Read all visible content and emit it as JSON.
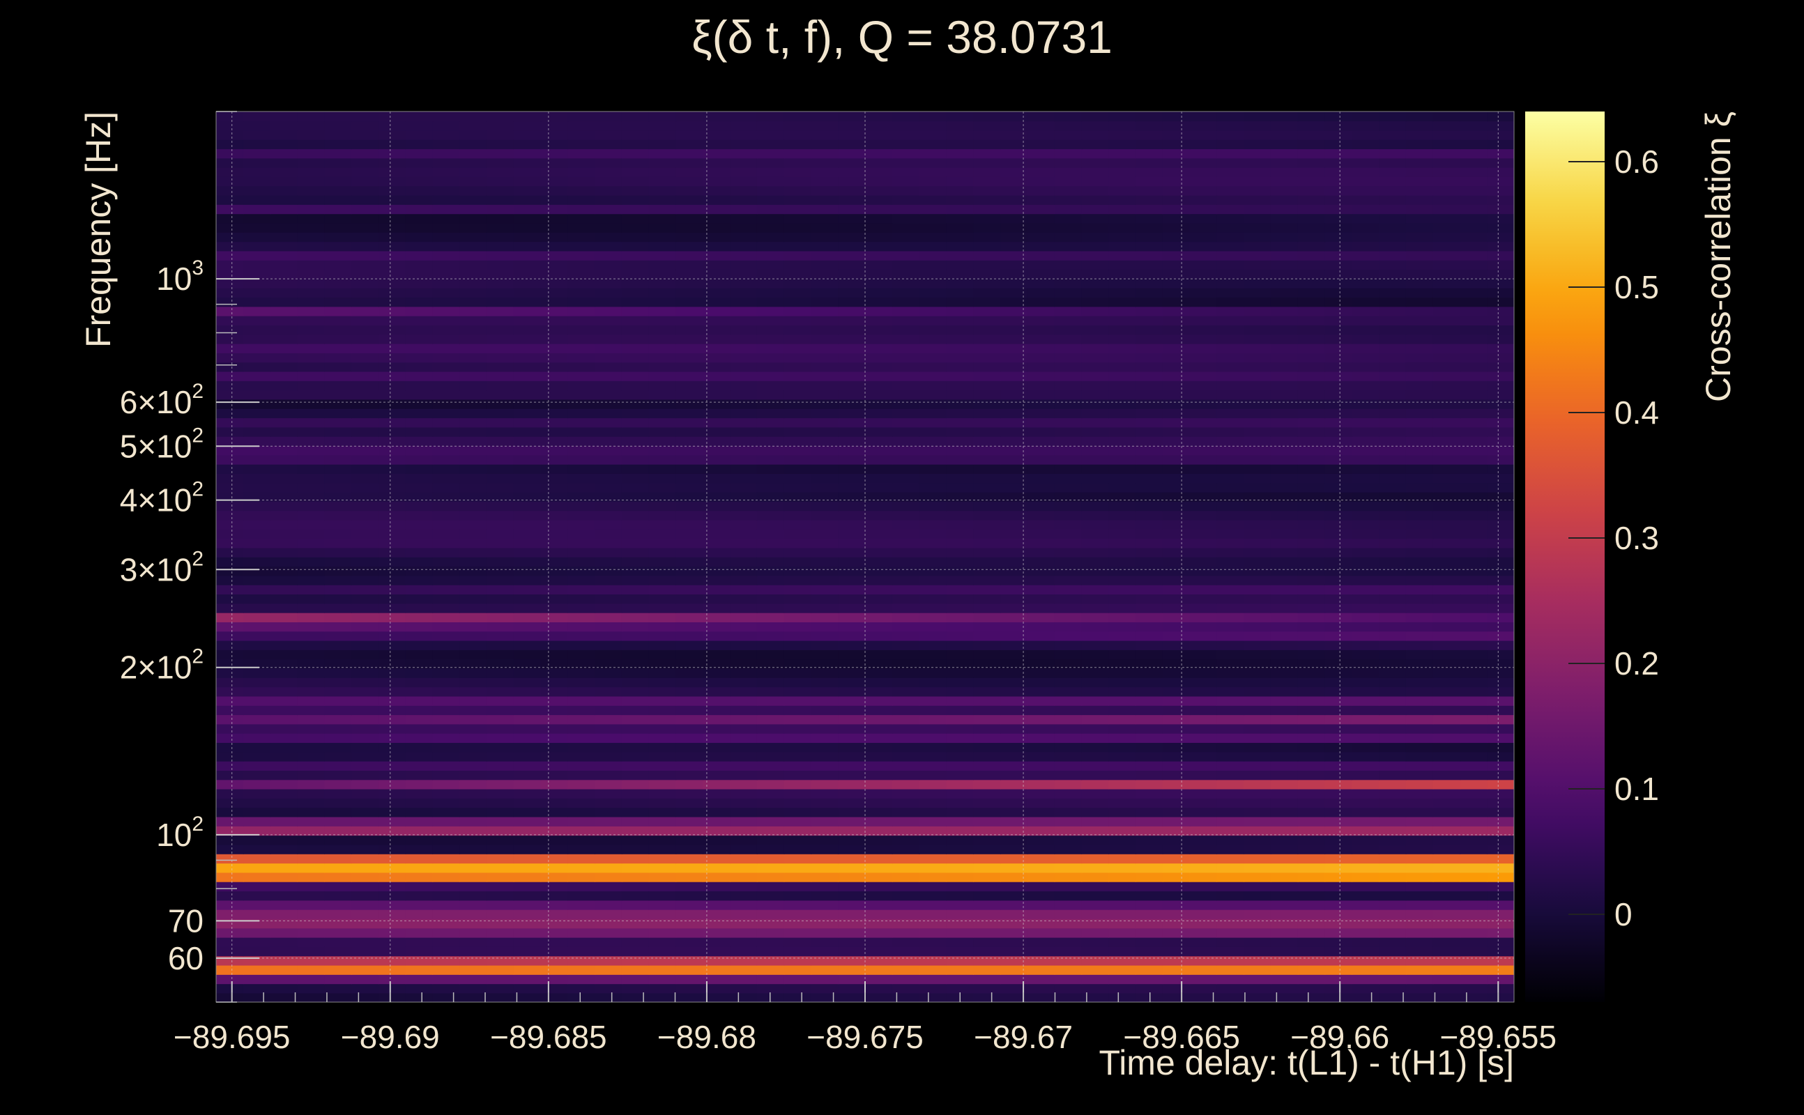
{
  "chart_data": {
    "type": "heatmap",
    "title": "ξ(δ t, f), Q = 38.0731",
    "xlabel": "Time delay: t(L1) - t(H1) [s]",
    "ylabel": "Frequency [Hz]",
    "colorbar_label": "Cross-correlation ξ",
    "x_range": [
      -89.6955,
      -89.6545
    ],
    "y_range": [
      50,
      2000
    ],
    "y_scale": "log",
    "grid": true,
    "colormap": "inferno",
    "colorbar_range": [
      -0.07,
      0.64
    ],
    "colors": {
      "background": "#000000",
      "text": "#f2e6cf",
      "grid": "#d8d8d8",
      "colormap_stops": [
        "#000004",
        "#1b0c41",
        "#4a0c6b",
        "#781c6d",
        "#a52c60",
        "#cf4446",
        "#ed6925",
        "#fb9b06",
        "#f7d13d",
        "#fcffa4"
      ]
    },
    "x_ticks": [
      {
        "value": -89.695,
        "label": "−89.695"
      },
      {
        "value": -89.69,
        "label": "−89.69"
      },
      {
        "value": -89.685,
        "label": "−89.685"
      },
      {
        "value": -89.68,
        "label": "−89.68"
      },
      {
        "value": -89.675,
        "label": "−89.675"
      },
      {
        "value": -89.67,
        "label": "−89.67"
      },
      {
        "value": -89.665,
        "label": "−89.665"
      },
      {
        "value": -89.66,
        "label": "−89.66"
      },
      {
        "value": -89.655,
        "label": "−89.655"
      }
    ],
    "y_ticks": [
      {
        "value": 60,
        "label": "60"
      },
      {
        "value": 70,
        "label": "70"
      },
      {
        "value": 100,
        "label": "10",
        "sup": "2"
      },
      {
        "value": 200,
        "label": "2×10",
        "sup": "2"
      },
      {
        "value": 300,
        "label": "3×10",
        "sup": "2"
      },
      {
        "value": 400,
        "label": "4×10",
        "sup": "2"
      },
      {
        "value": 500,
        "label": "5×10",
        "sup": "2"
      },
      {
        "value": 600,
        "label": "6×10",
        "sup": "2"
      },
      {
        "value": 1000,
        "label": "10",
        "sup": "3"
      }
    ],
    "colorbar_ticks": [
      {
        "value": 0,
        "label": "0"
      },
      {
        "value": 0.1,
        "label": "0.1"
      },
      {
        "value": 0.2,
        "label": "0.2"
      },
      {
        "value": 0.3,
        "label": "0.3"
      },
      {
        "value": 0.4,
        "label": "0.4"
      },
      {
        "value": 0.5,
        "label": "0.5"
      },
      {
        "value": 0.6,
        "label": "0.6"
      }
    ],
    "bands": [
      {
        "f": 56,
        "v0": 0.28,
        "v1": 0.3
      },
      {
        "f": 57.5,
        "v0": 0.45,
        "v1": 0.47
      },
      {
        "f": 59,
        "v0": 0.33,
        "v1": 0.34
      },
      {
        "f": 66,
        "v0": 0.18,
        "v1": 0.22
      },
      {
        "f": 68.5,
        "v0": 0.29,
        "v1": 0.31
      },
      {
        "f": 71,
        "v0": 0.25,
        "v1": 0.27
      },
      {
        "f": 73.5,
        "v0": 0.31,
        "v1": 0.33
      },
      {
        "f": 83,
        "v0": 0.32,
        "v1": 0.34
      },
      {
        "f": 85,
        "v0": 0.55,
        "v1": 0.64
      },
      {
        "f": 88,
        "v0": 0.6,
        "v1": 0.62
      },
      {
        "f": 91,
        "v0": 0.38,
        "v1": 0.4
      },
      {
        "f": 101,
        "v0": 0.21,
        "v1": 0.23
      },
      {
        "f": 104,
        "v0": 0.37,
        "v1": 0.38
      },
      {
        "f": 123,
        "v0": 0.13,
        "v1": 0.33
      },
      {
        "f": 132,
        "v0": 0.08,
        "v1": 0.09
      },
      {
        "f": 152,
        "v0": 0.17,
        "v1": 0.26
      },
      {
        "f": 162,
        "v0": 0.12,
        "v1": 0.18
      },
      {
        "f": 172,
        "v0": 0.14,
        "v1": 0.19
      },
      {
        "f": 225,
        "v0": 0.11,
        "v1": 0.17
      },
      {
        "f": 240,
        "v0": 0.19,
        "v1": 0.08
      },
      {
        "f": 248,
        "v0": 0.25,
        "v1": 0.1
      },
      {
        "f": 280,
        "v0": 0.08,
        "v1": 0.1
      },
      {
        "f": 330,
        "v0": 0.07,
        "v1": 0.06
      },
      {
        "f": 430,
        "v0": 0.05,
        "v1": 0.06
      },
      {
        "f": 480,
        "v0": 0.1,
        "v1": 0.09
      },
      {
        "f": 500,
        "v0": 0.12,
        "v1": 0.1
      },
      {
        "f": 560,
        "v0": 0.09,
        "v1": 0.08
      },
      {
        "f": 630,
        "v0": 0.11,
        "v1": 0.06
      },
      {
        "f": 660,
        "v0": 0.12,
        "v1": 0.08
      },
      {
        "f": 740,
        "v0": 0.1,
        "v1": 0.06
      },
      {
        "f": 830,
        "v0": 0.07,
        "v1": 0.09
      },
      {
        "f": 870,
        "v0": 0.13,
        "v1": 0.05
      },
      {
        "f": 1100,
        "v0": 0.07,
        "v1": 0.05
      },
      {
        "f": 1350,
        "v0": 0.1,
        "v1": 0.05
      },
      {
        "f": 1700,
        "v0": 0.08,
        "v1": 0.09
      },
      {
        "f": 1850,
        "v0": 0.06,
        "v1": 0.08
      }
    ]
  }
}
